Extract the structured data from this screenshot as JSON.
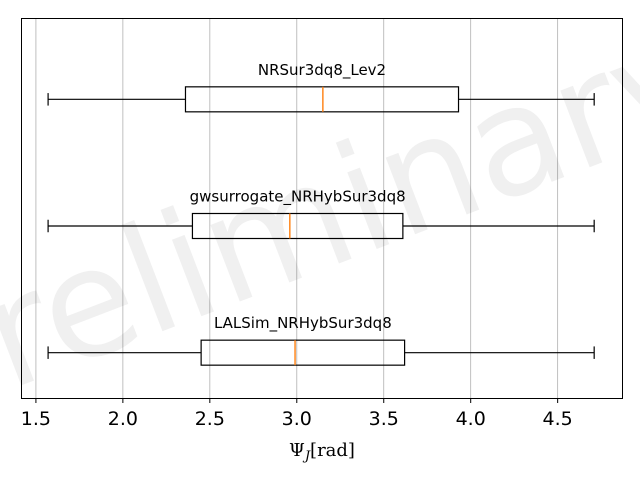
{
  "chart_data": {
    "type": "boxplot",
    "orientation": "horizontal",
    "xlabel": "Ψ",
    "xlabel_subscript": "J",
    "xlabel_unit": "[rad]",
    "xlim": [
      1.42,
      4.87
    ],
    "xticks": [
      1.5,
      2.0,
      2.5,
      3.0,
      3.5,
      4.0,
      4.5
    ],
    "xtick_labels": [
      "1.5",
      "2.0",
      "2.5",
      "3.0",
      "3.5",
      "4.0",
      "4.5"
    ],
    "grid": "vertical",
    "watermark": "Preliminary",
    "median_color": "#ff7f0e",
    "box_color": "#000000",
    "grid_color": "#b0b0b0",
    "series": [
      {
        "name": "NRSur3dq8_Lev2",
        "whisker_low": 1.57,
        "q1": 2.36,
        "median": 3.15,
        "q3": 3.93,
        "whisker_high": 4.71
      },
      {
        "name": "gwsurrogate_NRHybSur3dq8",
        "whisker_low": 1.57,
        "q1": 2.4,
        "median": 2.96,
        "q3": 3.61,
        "whisker_high": 4.71
      },
      {
        "name": "LALSim_NRHybSur3dq8",
        "whisker_low": 1.57,
        "q1": 2.45,
        "median": 2.99,
        "q3": 3.62,
        "whisker_high": 4.71
      }
    ]
  }
}
